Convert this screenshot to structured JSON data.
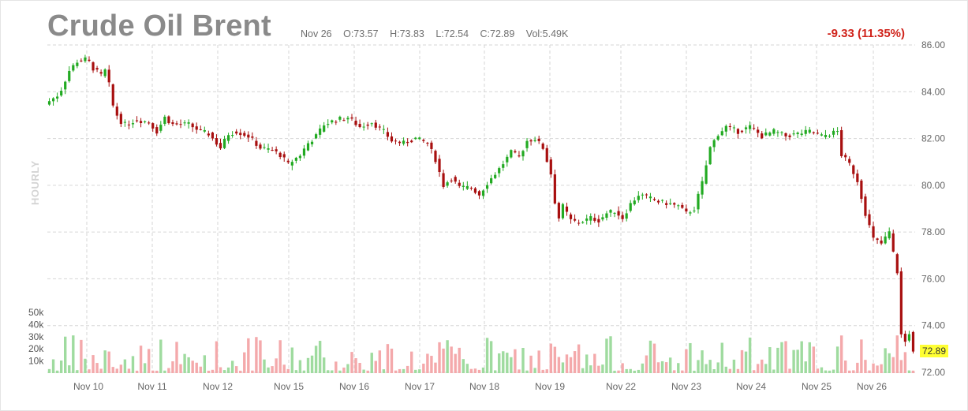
{
  "header": {
    "title": "Crude Oil Brent",
    "date": "Nov 26",
    "open": "O:73.57",
    "high": "H:73.83",
    "low": "L:72.54",
    "close": "C:72.89",
    "volume": "Vol:5.49K",
    "change": "-9.33 (11.35%)",
    "timeframe": "HOURLY"
  },
  "last_price_label": "72.89",
  "colors": {
    "up": "#22aa22",
    "down": "#a80f0f",
    "vol_up": "#9fdb9f",
    "vol_down": "#f4a9ab",
    "change": "#d0231b",
    "last_price_bg": "#ffff33"
  },
  "chart_data": {
    "type": "candlestick",
    "title": "Crude Oil Brent",
    "interval": "hourly",
    "x_tick_labels": [
      "Nov 10",
      "Nov 11",
      "Nov 12",
      "Nov 15",
      "Nov 16",
      "Nov 17",
      "Nov 18",
      "Nov 19",
      "Nov 22",
      "Nov 23",
      "Nov 24",
      "Nov 25",
      "Nov 26"
    ],
    "y_ticks": [
      72,
      74,
      76,
      78,
      80,
      82,
      84,
      86
    ],
    "y_tick_labels": [
      "72.00",
      "74.00",
      "76.00",
      "78.00",
      "80.00",
      "82.00",
      "84.00",
      "86.00"
    ],
    "ylim": [
      72,
      86
    ],
    "volume_ticks": [
      "10k",
      "20k",
      "30k",
      "40k",
      "50k"
    ],
    "volume_ylim": [
      0,
      50000
    ],
    "grid": true,
    "last_close": 72.89,
    "price_path": [
      [
        0,
        83.6
      ],
      [
        2.5,
        83.9
      ],
      [
        5,
        84.9
      ],
      [
        7,
        85.3
      ],
      [
        9.5,
        85.4
      ],
      [
        11,
        85.0
      ],
      [
        13,
        84.7
      ],
      [
        14.5,
        85.0
      ],
      [
        15.5,
        83.6
      ],
      [
        17.5,
        82.8
      ],
      [
        19,
        82.6
      ],
      [
        22,
        82.8
      ],
      [
        25,
        82.7
      ],
      [
        27,
        82.3
      ],
      [
        29,
        82.9
      ],
      [
        31,
        82.6
      ],
      [
        35,
        82.6
      ],
      [
        38,
        82.3
      ],
      [
        40,
        82.2
      ],
      [
        43,
        81.6
      ],
      [
        45,
        82.2
      ],
      [
        47,
        82.3
      ],
      [
        50,
        82.1
      ],
      [
        53,
        81.6
      ],
      [
        56,
        81.5
      ],
      [
        58,
        81.3
      ],
      [
        60,
        80.9
      ],
      [
        63,
        81.3
      ],
      [
        65,
        81.8
      ],
      [
        67,
        82.1
      ],
      [
        69,
        82.6
      ],
      [
        72,
        82.8
      ],
      [
        75,
        82.9
      ],
      [
        78,
        82.5
      ],
      [
        81,
        82.7
      ],
      [
        84,
        82.3
      ],
      [
        86,
        81.9
      ],
      [
        89,
        81.8
      ],
      [
        92,
        82.0
      ],
      [
        95,
        81.8
      ],
      [
        97,
        81.1
      ],
      [
        99,
        80.0
      ],
      [
        101,
        80.3
      ],
      [
        103,
        79.9
      ],
      [
        106,
        79.9
      ],
      [
        108,
        79.6
      ],
      [
        110,
        80.1
      ],
      [
        113,
        80.7
      ],
      [
        116,
        81.4
      ],
      [
        118,
        81.2
      ],
      [
        120,
        81.9
      ],
      [
        122,
        82.0
      ],
      [
        124,
        81.6
      ],
      [
        126,
        80.5
      ],
      [
        127,
        79.3
      ],
      [
        128,
        78.6
      ],
      [
        129,
        79.1
      ],
      [
        131,
        78.5
      ],
      [
        133,
        78.4
      ],
      [
        136,
        78.6
      ],
      [
        138,
        78.5
      ],
      [
        140,
        78.8
      ],
      [
        142,
        78.9
      ],
      [
        144,
        78.6
      ],
      [
        146,
        79.2
      ],
      [
        148,
        79.6
      ],
      [
        150,
        79.5
      ],
      [
        153,
        79.3
      ],
      [
        156,
        79.2
      ],
      [
        158,
        79.1
      ],
      [
        160,
        78.8
      ],
      [
        162,
        79.0
      ],
      [
        164,
        80.1
      ],
      [
        166,
        81.6
      ],
      [
        168,
        82.2
      ],
      [
        170,
        82.5
      ],
      [
        173,
        82.3
      ],
      [
        176,
        82.5
      ],
      [
        179,
        82.1
      ],
      [
        182,
        82.3
      ],
      [
        185,
        82.1
      ],
      [
        188,
        82.2
      ],
      [
        191,
        82.3
      ],
      [
        194,
        82.1
      ],
      [
        196,
        82.2
      ],
      [
        198,
        82.3
      ],
      [
        199,
        81.3
      ],
      [
        201,
        80.9
      ],
      [
        203,
        80.2
      ],
      [
        205,
        78.8
      ],
      [
        207,
        77.7
      ],
      [
        209,
        77.5
      ],
      [
        211,
        78.0
      ],
      [
        212,
        77.1
      ],
      [
        213,
        76.3
      ],
      [
        214,
        73.6
      ],
      [
        215,
        73.3
      ],
      [
        216,
        73.7
      ],
      [
        217,
        72.89
      ]
    ]
  }
}
